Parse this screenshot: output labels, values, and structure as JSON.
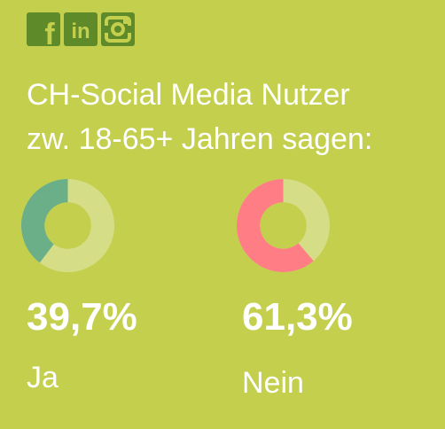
{
  "social_icons": [
    {
      "name": "facebook-icon",
      "glyph": "f"
    },
    {
      "name": "linkedin-icon",
      "glyph": "in"
    },
    {
      "name": "instagram-icon",
      "glyph": ""
    }
  ],
  "colors": {
    "background": "#c3cf4d",
    "icon_fill": "#5f8a2a",
    "ring_rest": "#d5de86",
    "ja_segment": "#6aaf87",
    "nein_segment": "#ff7e85"
  },
  "chart_data": {
    "type": "pie",
    "title_lines": [
      "CH-Social Media Nutzer",
      "zw. 18-65+ Jahren sagen:"
    ],
    "items": [
      {
        "key": "ja",
        "label": "Ja",
        "value": 39.7,
        "display": "39,7%",
        "color": "#6aaf87"
      },
      {
        "key": "nein",
        "label": "Nein",
        "value": 61.3,
        "display": "61,3%",
        "color": "#ff7e85"
      }
    ]
  }
}
